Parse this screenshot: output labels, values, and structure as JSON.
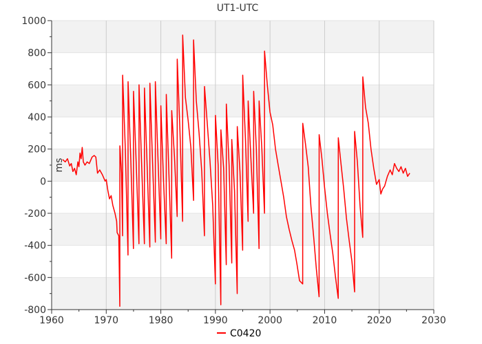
{
  "chart_data": {
    "type": "line",
    "title": "UT1-UTC",
    "xlabel": "",
    "ylabel": "ms",
    "xlim": [
      1960,
      2030
    ],
    "ylim": [
      -800,
      1000
    ],
    "x_ticks": [
      1960,
      1970,
      1980,
      1990,
      2000,
      2010,
      2020,
      2030
    ],
    "y_ticks": [
      -800,
      -600,
      -400,
      -200,
      0,
      200,
      400,
      600,
      800,
      1000
    ],
    "grid": true,
    "banded_background": true,
    "legend": {
      "position": "bottom-center"
    },
    "colors": {
      "series": "#ff0000",
      "band": "#f2f2f2",
      "grid": "#cccccc",
      "axis": "#333333"
    },
    "series": [
      {
        "name": "C0420",
        "points": [
          [
            1962.0,
            135
          ],
          [
            1962.5,
            120
          ],
          [
            1962.9,
            140
          ],
          [
            1963.3,
            95
          ],
          [
            1963.6,
            110
          ],
          [
            1963.9,
            60
          ],
          [
            1964.2,
            80
          ],
          [
            1964.5,
            40
          ],
          [
            1964.8,
            120
          ],
          [
            1965.0,
            90
          ],
          [
            1965.2,
            175
          ],
          [
            1965.4,
            140
          ],
          [
            1965.6,
            210
          ],
          [
            1965.8,
            120
          ],
          [
            1966.1,
            100
          ],
          [
            1966.5,
            120
          ],
          [
            1966.9,
            110
          ],
          [
            1967.4,
            150
          ],
          [
            1967.8,
            160
          ],
          [
            1968.1,
            150
          ],
          [
            1968.4,
            50
          ],
          [
            1968.8,
            70
          ],
          [
            1969.3,
            40
          ],
          [
            1969.8,
            0
          ],
          [
            1970.0,
            10
          ],
          [
            1970.3,
            -60
          ],
          [
            1970.6,
            -110
          ],
          [
            1970.9,
            -90
          ],
          [
            1971.2,
            -150
          ],
          [
            1971.6,
            -200
          ],
          [
            1971.9,
            -250
          ],
          [
            1972.0,
            -320
          ],
          [
            1972.3,
            -340
          ],
          [
            1972.49,
            -780
          ],
          [
            1972.5,
            220
          ],
          [
            1972.8,
            50
          ],
          [
            1972.99,
            -340
          ],
          [
            1973.0,
            660
          ],
          [
            1973.5,
            200
          ],
          [
            1973.99,
            -460
          ],
          [
            1974.0,
            620
          ],
          [
            1974.5,
            130
          ],
          [
            1974.99,
            -420
          ],
          [
            1975.0,
            560
          ],
          [
            1975.5,
            100
          ],
          [
            1975.99,
            -390
          ],
          [
            1976.0,
            600
          ],
          [
            1976.5,
            90
          ],
          [
            1976.99,
            -390
          ],
          [
            1977.0,
            580
          ],
          [
            1977.5,
            80
          ],
          [
            1977.99,
            -410
          ],
          [
            1978.0,
            610
          ],
          [
            1978.5,
            100
          ],
          [
            1978.99,
            -380
          ],
          [
            1979.0,
            620
          ],
          [
            1979.5,
            120
          ],
          [
            1979.99,
            -360
          ],
          [
            1980.0,
            470
          ],
          [
            1980.5,
            0
          ],
          [
            1980.99,
            -390
          ],
          [
            1981.0,
            540
          ],
          [
            1981.5,
            20
          ],
          [
            1981.99,
            -480
          ],
          [
            1982.0,
            440
          ],
          [
            1982.5,
            150
          ],
          [
            1982.99,
            -220
          ],
          [
            1983.0,
            760
          ],
          [
            1983.5,
            320
          ],
          [
            1983.99,
            -250
          ],
          [
            1984.0,
            910
          ],
          [
            1984.5,
            520
          ],
          [
            1985.0,
            380
          ],
          [
            1985.5,
            210
          ],
          [
            1985.99,
            -120
          ],
          [
            1986.0,
            880
          ],
          [
            1986.5,
            500
          ],
          [
            1987.0,
            300
          ],
          [
            1987.5,
            60
          ],
          [
            1987.99,
            -340
          ],
          [
            1988.0,
            590
          ],
          [
            1988.5,
            360
          ],
          [
            1989.0,
            130
          ],
          [
            1989.5,
            -150
          ],
          [
            1989.99,
            -640
          ],
          [
            1990.0,
            410
          ],
          [
            1990.5,
            100
          ],
          [
            1990.99,
            -770
          ],
          [
            1991.0,
            320
          ],
          [
            1991.5,
            80
          ],
          [
            1991.99,
            -520
          ],
          [
            1992.0,
            480
          ],
          [
            1992.5,
            100
          ],
          [
            1992.99,
            -510
          ],
          [
            1993.0,
            260
          ],
          [
            1993.5,
            -60
          ],
          [
            1993.99,
            -700
          ],
          [
            1994.0,
            340
          ],
          [
            1994.5,
            60
          ],
          [
            1994.99,
            -430
          ],
          [
            1995.0,
            660
          ],
          [
            1995.5,
            260
          ],
          [
            1995.99,
            -250
          ],
          [
            1996.0,
            500
          ],
          [
            1996.5,
            140
          ],
          [
            1996.99,
            -200
          ],
          [
            1997.0,
            560
          ],
          [
            1997.5,
            200
          ],
          [
            1997.99,
            -420
          ],
          [
            1998.0,
            500
          ],
          [
            1998.5,
            200
          ],
          [
            1998.99,
            -200
          ],
          [
            1999.0,
            810
          ],
          [
            1999.5,
            600
          ],
          [
            2000.0,
            430
          ],
          [
            2000.5,
            350
          ],
          [
            2001.0,
            200
          ],
          [
            2001.5,
            100
          ],
          [
            2002.0,
            0
          ],
          [
            2002.5,
            -100
          ],
          [
            2003.0,
            -220
          ],
          [
            2003.5,
            -300
          ],
          [
            2004.0,
            -370
          ],
          [
            2004.5,
            -430
          ],
          [
            2004.9,
            -510
          ],
          [
            2005.4,
            -620
          ],
          [
            2005.99,
            -640
          ],
          [
            2006.0,
            360
          ],
          [
            2006.5,
            230
          ],
          [
            2007.0,
            90
          ],
          [
            2007.5,
            -160
          ],
          [
            2008.0,
            -350
          ],
          [
            2008.5,
            -550
          ],
          [
            2008.99,
            -720
          ],
          [
            2009.0,
            290
          ],
          [
            2009.5,
            140
          ],
          [
            2010.0,
            -40
          ],
          [
            2010.5,
            -200
          ],
          [
            2011.0,
            -330
          ],
          [
            2011.5,
            -450
          ],
          [
            2012.0,
            -600
          ],
          [
            2012.49,
            -730
          ],
          [
            2012.5,
            270
          ],
          [
            2013.0,
            110
          ],
          [
            2013.5,
            -50
          ],
          [
            2014.0,
            -230
          ],
          [
            2014.5,
            -370
          ],
          [
            2015.0,
            -500
          ],
          [
            2015.49,
            -690
          ],
          [
            2015.5,
            310
          ],
          [
            2016.0,
            120
          ],
          [
            2016.5,
            -160
          ],
          [
            2016.99,
            -350
          ],
          [
            2017.0,
            650
          ],
          [
            2017.5,
            460
          ],
          [
            2018.0,
            360
          ],
          [
            2018.5,
            200
          ],
          [
            2019.0,
            80
          ],
          [
            2019.5,
            -20
          ],
          [
            2020.0,
            10
          ],
          [
            2020.3,
            -80
          ],
          [
            2020.6,
            -50
          ],
          [
            2021.0,
            -30
          ],
          [
            2021.5,
            30
          ],
          [
            2022.0,
            70
          ],
          [
            2022.4,
            40
          ],
          [
            2022.8,
            110
          ],
          [
            2023.2,
            80
          ],
          [
            2023.6,
            60
          ],
          [
            2024.0,
            90
          ],
          [
            2024.4,
            50
          ],
          [
            2024.8,
            80
          ],
          [
            2025.2,
            30
          ],
          [
            2025.6,
            50
          ]
        ]
      }
    ]
  }
}
